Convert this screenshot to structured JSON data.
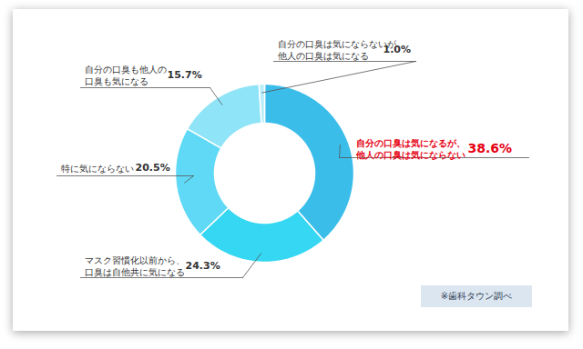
{
  "chart_data": {
    "type": "donut",
    "categories": [
      "自分の口臭は気になるが、\n他人の口臭は気にならない",
      "マスク習慣化以前から、\n口臭は自他共に気になる",
      "特に気にならない",
      "自分の口臭も他人の\n口臭も気になる",
      "自分の口臭は気にならないが\n他人の口臭は気になる"
    ],
    "values": [
      38.6,
      24.3,
      20.5,
      15.7,
      1.0
    ],
    "value_labels": [
      "38.6%",
      "24.3%",
      "20.5%",
      "15.7%",
      "1.0%"
    ],
    "colors": [
      "#3bbdea",
      "#35d7f2",
      "#5fd9f5",
      "#8fe4f8",
      "#b8edf9"
    ],
    "data_labels": true,
    "annotations": [
      "※歯科タウン調べ"
    ]
  }
}
